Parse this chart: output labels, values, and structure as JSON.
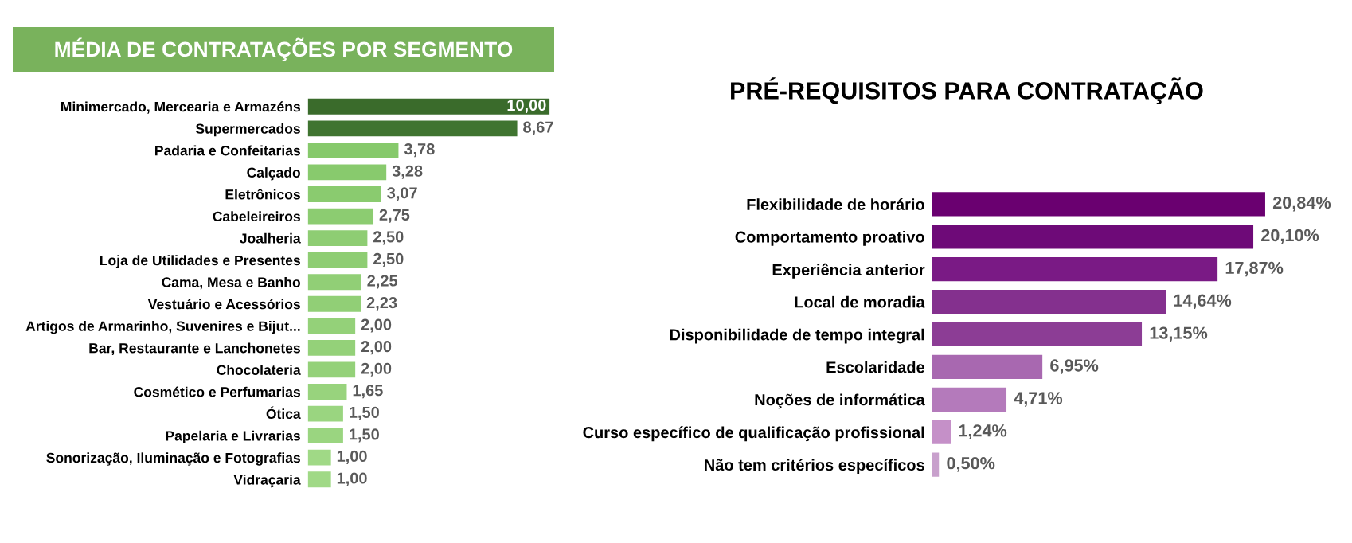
{
  "chart_data": [
    {
      "type": "bar",
      "orientation": "horizontal",
      "title": "MÉDIA DE CONTRATAÇÕES POR SEGMENTO",
      "categories": [
        "Minimercado, Mercearia e Armazéns",
        "Supermercados",
        "Padaria e Confeitarias",
        "Calçado",
        "Eletrônicos",
        "Cabeleireiros",
        "Joalheria",
        "Loja de Utilidades e Presentes",
        "Cama, Mesa e Banho",
        "Vestuário e Acessórios",
        "Artigos de Armarinho, Suvenires e Bijut...",
        "Bar, Restaurante e Lanchonetes",
        "Chocolateria",
        "Cosmético e Perfumarias",
        "Ótica",
        "Papelaria e Livrarias",
        "Sonorização, Iluminação e Fotografias",
        "Vidraçaria"
      ],
      "values": [
        10.0,
        8.67,
        3.78,
        3.28,
        3.07,
        2.75,
        2.5,
        2.5,
        2.25,
        2.23,
        2.0,
        2.0,
        2.0,
        1.65,
        1.5,
        1.5,
        1.0,
        1.0
      ],
      "value_labels": [
        "10,00",
        "8,67",
        "3,78",
        "3,28",
        "3,07",
        "2,75",
        "2,50",
        "2,50",
        "2,25",
        "2,23",
        "2,00",
        "2,00",
        "2,00",
        "1,65",
        "1,50",
        "1,50",
        "1,00",
        "1,00"
      ],
      "colors": [
        "#3a6b2b",
        "#3f7430",
        "#86c96b",
        "#88ca6d",
        "#8acb6f",
        "#8ccc71",
        "#8ecd73",
        "#8ecd73",
        "#91cf76",
        "#91cf76",
        "#94d179",
        "#94d179",
        "#94d179",
        "#98d37d",
        "#9ad580",
        "#9ad580",
        "#a0d986",
        "#a0d986"
      ],
      "grid": false,
      "legend": false
    },
    {
      "type": "bar",
      "orientation": "horizontal",
      "title": "PRÉ-REQUISITOS PARA CONTRATAÇÃO",
      "categories": [
        "Flexibilidade de horário",
        "Comportamento proativo",
        "Experiência anterior",
        "Local de moradia",
        "Disponibilidade de tempo integral",
        "Escolaridade",
        "Noções de informática",
        "Curso específico de qualificação profissional",
        "Não tem critérios específicos"
      ],
      "values": [
        20.84,
        20.1,
        17.87,
        14.64,
        13.15,
        6.95,
        4.71,
        1.24,
        0.5
      ],
      "value_labels": [
        "20,84%",
        "20,10%",
        "17,87%",
        "14,64%",
        "13,15%",
        "6,95%",
        "4,71%",
        "1,24%",
        "0,50%"
      ],
      "colors": [
        "#6a0070",
        "#6e0a78",
        "#7a1a85",
        "#84308e",
        "#8c3d95",
        "#a868b0",
        "#b47abb",
        "#c590c8",
        "#c8a0cc"
      ],
      "grid": false,
      "legend": false
    }
  ]
}
